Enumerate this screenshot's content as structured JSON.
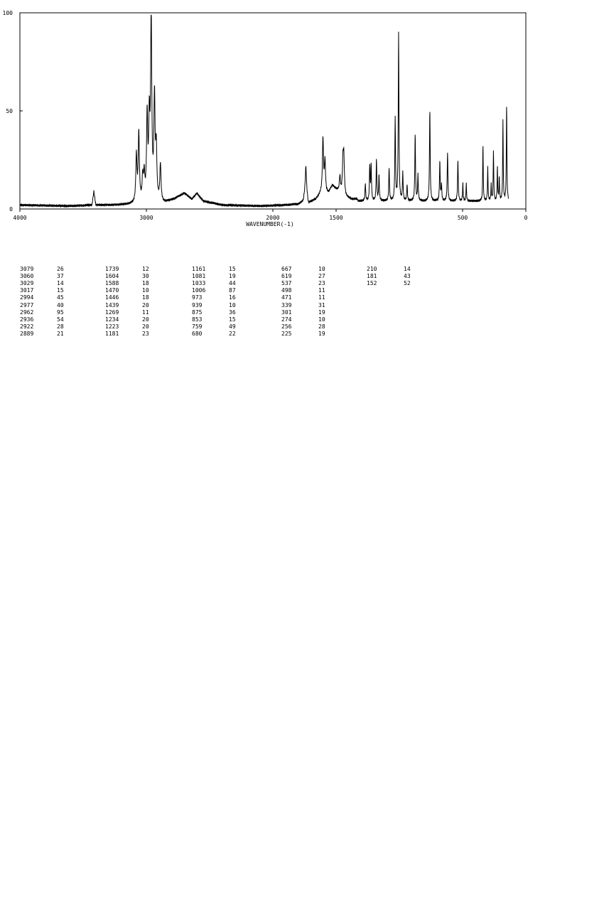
{
  "chart_data": {
    "type": "line",
    "title": "",
    "xlabel": "WAVENUMBER(-1)",
    "ylabel": "",
    "xlim": [
      4000,
      0
    ],
    "ylim": [
      0,
      100
    ],
    "x_ticks": [
      4000,
      3000,
      2000,
      1500,
      500,
      0
    ],
    "x_tick_labels": [
      "4000",
      "3000",
      "2000",
      "1500",
      "500",
      "0"
    ],
    "y_ticks": [
      0,
      50,
      100
    ],
    "y_tick_labels": [
      "0",
      "50",
      "100"
    ],
    "grid": false,
    "legend": "none",
    "baseline": [
      [
        4000,
        2
      ],
      [
        3600,
        1.5
      ],
      [
        3430,
        2
      ],
      [
        3415,
        9
      ],
      [
        3400,
        2
      ],
      [
        3250,
        2
      ],
      [
        2860,
        3
      ],
      [
        2780,
        5
      ],
      [
        2700,
        8
      ],
      [
        2640,
        5
      ],
      [
        2600,
        8
      ],
      [
        2550,
        4
      ],
      [
        2400,
        2
      ],
      [
        2100,
        1.5
      ],
      [
        1900,
        2
      ],
      [
        1800,
        2.5
      ],
      [
        1760,
        4
      ],
      [
        1739,
        12
      ],
      [
        1720,
        3
      ],
      [
        1660,
        5
      ],
      [
        1620,
        8
      ],
      [
        1560,
        8
      ],
      [
        1530,
        12
      ],
      [
        1500,
        10
      ],
      [
        1420,
        6
      ],
      [
        1380,
        5
      ],
      [
        1330,
        5
      ]
    ],
    "peaks": [
      {
        "x": 3079,
        "y": 26
      },
      {
        "x": 3060,
        "y": 37
      },
      {
        "x": 3029,
        "y": 14
      },
      {
        "x": 3017,
        "y": 15
      },
      {
        "x": 2994,
        "y": 45
      },
      {
        "x": 2977,
        "y": 40
      },
      {
        "x": 2962,
        "y": 95
      },
      {
        "x": 2936,
        "y": 54
      },
      {
        "x": 2922,
        "y": 28
      },
      {
        "x": 2889,
        "y": 21
      },
      {
        "x": 1739,
        "y": 12
      },
      {
        "x": 1604,
        "y": 30
      },
      {
        "x": 1588,
        "y": 18
      },
      {
        "x": 1470,
        "y": 10
      },
      {
        "x": 1446,
        "y": 18
      },
      {
        "x": 1439,
        "y": 20
      },
      {
        "x": 1269,
        "y": 11
      },
      {
        "x": 1234,
        "y": 20
      },
      {
        "x": 1223,
        "y": 20
      },
      {
        "x": 1181,
        "y": 23
      },
      {
        "x": 1161,
        "y": 15
      },
      {
        "x": 1081,
        "y": 19
      },
      {
        "x": 1033,
        "y": 44
      },
      {
        "x": 1006,
        "y": 87
      },
      {
        "x": 973,
        "y": 16
      },
      {
        "x": 939,
        "y": 10
      },
      {
        "x": 875,
        "y": 36
      },
      {
        "x": 853,
        "y": 15
      },
      {
        "x": 759,
        "y": 49
      },
      {
        "x": 680,
        "y": 22
      },
      {
        "x": 667,
        "y": 10
      },
      {
        "x": 619,
        "y": 27
      },
      {
        "x": 537,
        "y": 23
      },
      {
        "x": 498,
        "y": 11
      },
      {
        "x": 471,
        "y": 11
      },
      {
        "x": 339,
        "y": 31
      },
      {
        "x": 301,
        "y": 19
      },
      {
        "x": 274,
        "y": 10
      },
      {
        "x": 256,
        "y": 28
      },
      {
        "x": 225,
        "y": 19
      },
      {
        "x": 210,
        "y": 14
      },
      {
        "x": 181,
        "y": 43
      },
      {
        "x": 152,
        "y": 52
      }
    ]
  },
  "peak_table": {
    "columns": [
      [
        [
          "3079",
          "26"
        ],
        [
          "3060",
          "37"
        ],
        [
          "3029",
          "14"
        ],
        [
          "3017",
          "15"
        ],
        [
          "2994",
          "45"
        ],
        [
          "2977",
          "40"
        ],
        [
          "2962",
          "95"
        ],
        [
          "2936",
          "54"
        ],
        [
          "2922",
          "28"
        ],
        [
          "2889",
          "21"
        ]
      ],
      [
        [
          "1739",
          "12"
        ],
        [
          "1604",
          "30"
        ],
        [
          "1588",
          "18"
        ],
        [
          "1470",
          "10"
        ],
        [
          "1446",
          "18"
        ],
        [
          "1439",
          "20"
        ],
        [
          "1269",
          "11"
        ],
        [
          "1234",
          "20"
        ],
        [
          "1223",
          "20"
        ],
        [
          "1181",
          "23"
        ]
      ],
      [
        [
          "1161",
          "15"
        ],
        [
          "1081",
          "19"
        ],
        [
          "1033",
          "44"
        ],
        [
          "1006",
          "87"
        ],
        [
          "973",
          "16"
        ],
        [
          "939",
          "10"
        ],
        [
          "875",
          "36"
        ],
        [
          "853",
          "15"
        ],
        [
          "759",
          "49"
        ],
        [
          "680",
          "22"
        ]
      ],
      [
        [
          "667",
          "10"
        ],
        [
          "619",
          "27"
        ],
        [
          "537",
          "23"
        ],
        [
          "498",
          "11"
        ],
        [
          "471",
          "11"
        ],
        [
          "339",
          "31"
        ],
        [
          "301",
          "19"
        ],
        [
          "274",
          "10"
        ],
        [
          "256",
          "28"
        ],
        [
          "225",
          "19"
        ]
      ],
      [
        [
          "210",
          "14"
        ],
        [
          "181",
          "43"
        ],
        [
          "152",
          "52"
        ]
      ]
    ]
  }
}
